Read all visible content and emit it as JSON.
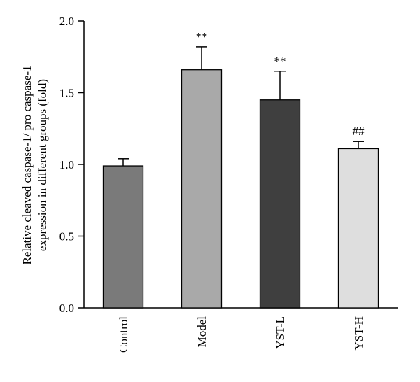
{
  "chart_data": {
    "type": "bar",
    "ylabel_lines": [
      "Relative cleaved caspase-1/ pro caspase-1",
      "expression in different groups (fold)"
    ],
    "xlabel": "",
    "ylim": [
      0.0,
      2.0
    ],
    "y_ticks": [
      "0.0",
      "0.5",
      "1.0",
      "1.5",
      "2.0"
    ],
    "categories": [
      "Control",
      "Model",
      "YST-L",
      "YST-H"
    ],
    "values": [
      0.99,
      1.66,
      1.45,
      1.11
    ],
    "error_upper": [
      0.05,
      0.16,
      0.2,
      0.05
    ],
    "annotations": [
      "",
      "**",
      "**",
      "##"
    ],
    "bar_colors": [
      "#7a7a7a",
      "#a9a9a9",
      "#3f3f3f",
      "#dedede"
    ],
    "grid": false,
    "legend": "none"
  }
}
